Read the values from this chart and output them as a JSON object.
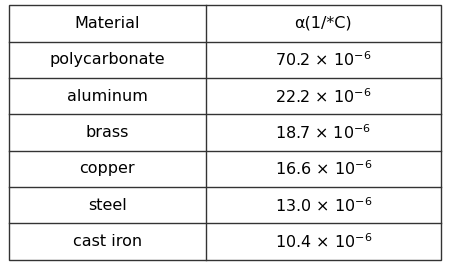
{
  "col1_header": "Material",
  "col2_header": "α(1/*C)",
  "rows": [
    [
      "polycarbonate",
      "70.2 × 10$^{-6}$"
    ],
    [
      "aluminum",
      "22.2 × 10$^{-6}$"
    ],
    [
      "brass",
      "18.7 × 10$^{-6}$"
    ],
    [
      "copper",
      "16.6 × 10$^{-6}$"
    ],
    [
      "steel",
      "13.0 × 10$^{-6}$"
    ],
    [
      "cast iron",
      "10.4 × 10$^{-6}$"
    ]
  ],
  "bg_color": "#ffffff",
  "line_color": "#333333",
  "text_color": "#000000",
  "header_fontsize": 11.5,
  "cell_fontsize": 11.5,
  "col_split": 0.455,
  "figwidth": 4.5,
  "figheight": 2.65,
  "dpi": 100
}
